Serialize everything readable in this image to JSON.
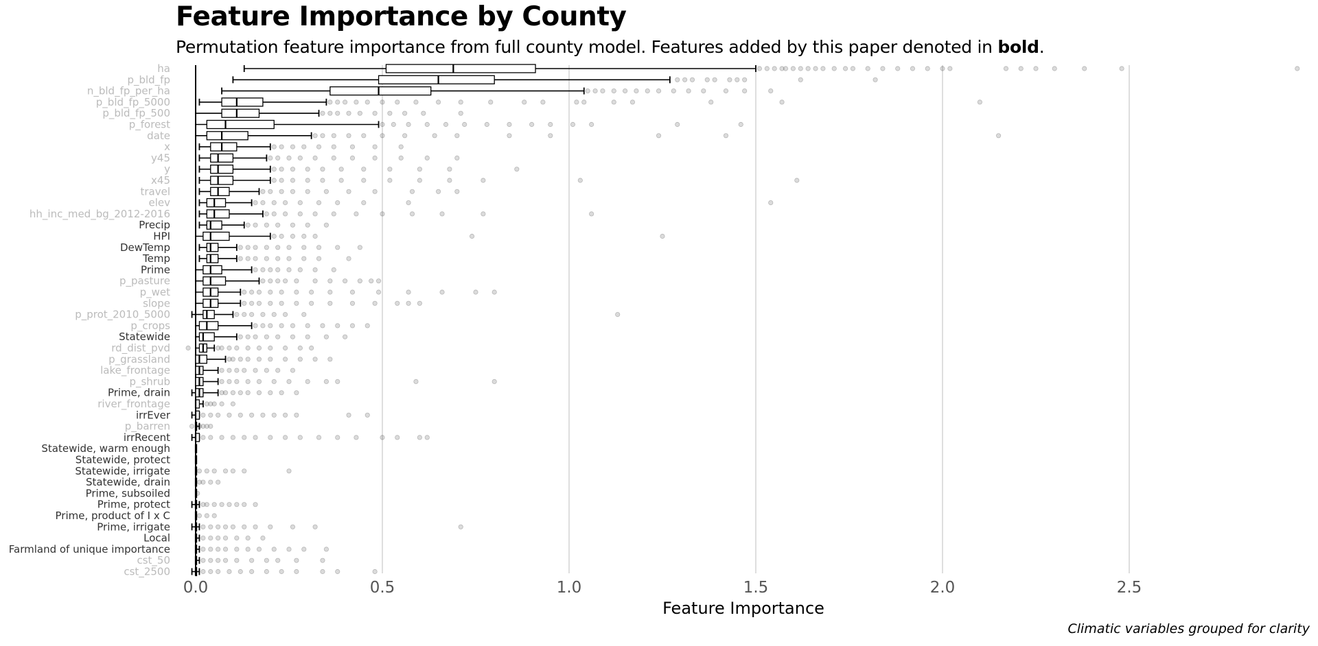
{
  "title": "Feature Importance by County",
  "subtitle": {
    "prefix": "Permutation feature importance from full county model. Features added by this paper denoted in ",
    "emphasis": "bold",
    "suffix": "."
  },
  "caption": "Climatic variables grouped for clarity",
  "colors": {
    "existing_feature_label": "#bbbbbb",
    "added_feature_label": "#333333",
    "gridline": "#c8c8c8",
    "box_fill": "#ffffff",
    "box_stroke": "#000000",
    "outlier": "#000000"
  },
  "chart_data": {
    "type": "boxplot",
    "orientation": "horizontal",
    "title": "Feature Importance by County",
    "xlabel": "Feature Importance",
    "ylabel": "",
    "xlim": [
      -0.05,
      3.0
    ],
    "xticks": [
      0.0,
      0.5,
      1.0,
      1.5,
      2.0,
      2.5
    ],
    "xtick_labels": [
      "0.0",
      "0.5",
      "1.0",
      "1.5",
      "2.0",
      "2.5"
    ],
    "grid": "vertical",
    "legend": "none",
    "series": [
      {
        "name": "ha",
        "bold": false,
        "wmin": 0.13,
        "q1": 0.51,
        "median": 0.69,
        "q3": 0.91,
        "wmax": 1.5,
        "outliers": [
          1.51,
          1.53,
          1.55,
          1.57,
          1.58,
          1.6,
          1.62,
          1.64,
          1.66,
          1.68,
          1.71,
          1.74,
          1.76,
          1.8,
          1.84,
          1.88,
          1.92,
          1.96,
          2.0,
          2.02,
          2.17,
          2.21,
          2.25,
          2.3,
          2.38,
          2.48,
          2.95
        ]
      },
      {
        "name": "p_bld_fp",
        "bold": false,
        "wmin": 0.1,
        "q1": 0.49,
        "median": 0.65,
        "q3": 0.8,
        "wmax": 1.27,
        "outliers": [
          1.29,
          1.31,
          1.33,
          1.37,
          1.39,
          1.43,
          1.45,
          1.47,
          1.62,
          1.82
        ]
      },
      {
        "name": "n_bld_fp_per_ha",
        "bold": false,
        "wmin": 0.07,
        "q1": 0.36,
        "median": 0.49,
        "q3": 0.63,
        "wmax": 1.04,
        "outliers": [
          1.05,
          1.07,
          1.09,
          1.12,
          1.15,
          1.18,
          1.21,
          1.24,
          1.28,
          1.32,
          1.36,
          1.42,
          1.47,
          1.54
        ]
      },
      {
        "name": "p_bld_fp_5000",
        "bold": false,
        "wmin": 0.01,
        "q1": 0.07,
        "median": 0.11,
        "q3": 0.18,
        "wmax": 0.35,
        "outliers": [
          0.36,
          0.38,
          0.4,
          0.43,
          0.46,
          0.5,
          0.54,
          0.59,
          0.65,
          0.71,
          0.79,
          0.88,
          0.93,
          1.02,
          1.04,
          1.12,
          1.17,
          1.38,
          1.57,
          2.1
        ]
      },
      {
        "name": "p_bld_fp_500",
        "bold": false,
        "wmin": 0.0,
        "q1": 0.07,
        "median": 0.11,
        "q3": 0.17,
        "wmax": 0.33,
        "outliers": [
          0.34,
          0.36,
          0.38,
          0.41,
          0.44,
          0.48,
          0.52,
          0.56,
          0.61,
          0.71
        ]
      },
      {
        "name": "p_forest",
        "bold": false,
        "wmin": 0.0,
        "q1": 0.03,
        "median": 0.08,
        "q3": 0.21,
        "wmax": 0.49,
        "outliers": [
          0.5,
          0.53,
          0.57,
          0.62,
          0.67,
          0.72,
          0.78,
          0.84,
          0.9,
          0.95,
          1.01,
          1.06,
          1.29,
          1.46
        ]
      },
      {
        "name": "date",
        "bold": false,
        "wmin": 0.0,
        "q1": 0.03,
        "median": 0.07,
        "q3": 0.14,
        "wmax": 0.31,
        "outliers": [
          0.32,
          0.34,
          0.37,
          0.41,
          0.45,
          0.5,
          0.56,
          0.64,
          0.7,
          0.84,
          0.95,
          1.24,
          1.42,
          2.15
        ]
      },
      {
        "name": "x",
        "bold": false,
        "wmin": 0.01,
        "q1": 0.04,
        "median": 0.07,
        "q3": 0.11,
        "wmax": 0.2,
        "outliers": [
          0.21,
          0.23,
          0.26,
          0.29,
          0.33,
          0.37,
          0.42,
          0.48,
          0.55
        ]
      },
      {
        "name": "y45",
        "bold": false,
        "wmin": 0.01,
        "q1": 0.04,
        "median": 0.06,
        "q3": 0.1,
        "wmax": 0.19,
        "outliers": [
          0.2,
          0.22,
          0.25,
          0.28,
          0.32,
          0.37,
          0.42,
          0.48,
          0.55,
          0.62,
          0.7
        ]
      },
      {
        "name": "y",
        "bold": false,
        "wmin": 0.01,
        "q1": 0.04,
        "median": 0.06,
        "q3": 0.1,
        "wmax": 0.2,
        "outliers": [
          0.21,
          0.23,
          0.26,
          0.3,
          0.34,
          0.39,
          0.45,
          0.52,
          0.6,
          0.68,
          0.86
        ]
      },
      {
        "name": "x45",
        "bold": false,
        "wmin": 0.01,
        "q1": 0.04,
        "median": 0.06,
        "q3": 0.1,
        "wmax": 0.2,
        "outliers": [
          0.21,
          0.23,
          0.26,
          0.3,
          0.34,
          0.39,
          0.45,
          0.52,
          0.6,
          0.68,
          0.77,
          1.03,
          1.61
        ]
      },
      {
        "name": "travel",
        "bold": false,
        "wmin": 0.01,
        "q1": 0.04,
        "median": 0.06,
        "q3": 0.09,
        "wmax": 0.17,
        "outliers": [
          0.18,
          0.2,
          0.23,
          0.26,
          0.3,
          0.35,
          0.41,
          0.48,
          0.58,
          0.65,
          0.7
        ]
      },
      {
        "name": "elev",
        "bold": false,
        "wmin": 0.01,
        "q1": 0.03,
        "median": 0.05,
        "q3": 0.08,
        "wmax": 0.15,
        "outliers": [
          0.16,
          0.18,
          0.21,
          0.24,
          0.28,
          0.33,
          0.38,
          0.45,
          0.57,
          1.54
        ]
      },
      {
        "name": "hh_inc_med_bg_2012-2016",
        "bold": false,
        "wmin": 0.01,
        "q1": 0.03,
        "median": 0.05,
        "q3": 0.09,
        "wmax": 0.18,
        "outliers": [
          0.19,
          0.21,
          0.24,
          0.28,
          0.32,
          0.37,
          0.43,
          0.5,
          0.58,
          0.66,
          0.77,
          1.06
        ]
      },
      {
        "name": "Precip",
        "bold": true,
        "wmin": 0.01,
        "q1": 0.03,
        "median": 0.04,
        "q3": 0.07,
        "wmax": 0.13,
        "outliers": [
          0.14,
          0.16,
          0.19,
          0.22,
          0.26,
          0.3,
          0.35
        ]
      },
      {
        "name": "HPI",
        "bold": true,
        "wmin": 0.0,
        "q1": 0.02,
        "median": 0.04,
        "q3": 0.09,
        "wmax": 0.2,
        "outliers": [
          0.21,
          0.23,
          0.26,
          0.29,
          0.32,
          0.74,
          1.25
        ]
      },
      {
        "name": "DewTemp",
        "bold": true,
        "wmin": 0.01,
        "q1": 0.03,
        "median": 0.04,
        "q3": 0.06,
        "wmax": 0.11,
        "outliers": [
          0.12,
          0.14,
          0.16,
          0.19,
          0.22,
          0.25,
          0.29,
          0.33,
          0.38,
          0.44
        ]
      },
      {
        "name": "Temp",
        "bold": true,
        "wmin": 0.01,
        "q1": 0.03,
        "median": 0.04,
        "q3": 0.06,
        "wmax": 0.11,
        "outliers": [
          0.12,
          0.14,
          0.16,
          0.19,
          0.22,
          0.25,
          0.29,
          0.33,
          0.41
        ]
      },
      {
        "name": "Prime",
        "bold": true,
        "wmin": 0.0,
        "q1": 0.02,
        "median": 0.04,
        "q3": 0.07,
        "wmax": 0.15,
        "outliers": [
          0.16,
          0.18,
          0.2,
          0.22,
          0.25,
          0.28,
          0.32,
          0.37
        ]
      },
      {
        "name": "p_pasture",
        "bold": false,
        "wmin": 0.0,
        "q1": 0.02,
        "median": 0.04,
        "q3": 0.08,
        "wmax": 0.17,
        "outliers": [
          0.18,
          0.2,
          0.22,
          0.24,
          0.27,
          0.32,
          0.36,
          0.4,
          0.44,
          0.47,
          0.49
        ]
      },
      {
        "name": "p_wet",
        "bold": false,
        "wmin": 0.0,
        "q1": 0.02,
        "median": 0.04,
        "q3": 0.06,
        "wmax": 0.12,
        "outliers": [
          0.13,
          0.15,
          0.17,
          0.2,
          0.23,
          0.27,
          0.31,
          0.36,
          0.42,
          0.49,
          0.57,
          0.66,
          0.75,
          0.8
        ]
      },
      {
        "name": "slope",
        "bold": false,
        "wmin": 0.0,
        "q1": 0.02,
        "median": 0.04,
        "q3": 0.06,
        "wmax": 0.12,
        "outliers": [
          0.13,
          0.15,
          0.17,
          0.2,
          0.23,
          0.27,
          0.31,
          0.36,
          0.42,
          0.48,
          0.54,
          0.57,
          0.6
        ]
      },
      {
        "name": "p_prot_2010_5000",
        "bold": false,
        "wmin": -0.01,
        "q1": 0.02,
        "median": 0.03,
        "q3": 0.05,
        "wmax": 0.1,
        "outliers": [
          0.11,
          0.13,
          0.15,
          0.18,
          0.21,
          0.24,
          0.29,
          1.13
        ]
      },
      {
        "name": "p_crops",
        "bold": false,
        "wmin": 0.0,
        "q1": 0.01,
        "median": 0.03,
        "q3": 0.06,
        "wmax": 0.15,
        "outliers": [
          0.16,
          0.18,
          0.2,
          0.23,
          0.26,
          0.3,
          0.34,
          0.38,
          0.42,
          0.46
        ]
      },
      {
        "name": "Statewide",
        "bold": true,
        "wmin": 0.0,
        "q1": 0.01,
        "median": 0.02,
        "q3": 0.05,
        "wmax": 0.11,
        "outliers": [
          0.12,
          0.14,
          0.16,
          0.19,
          0.22,
          0.26,
          0.3,
          0.35,
          0.4
        ]
      },
      {
        "name": "rd_dist_pvd",
        "bold": false,
        "wmin": 0.0,
        "q1": 0.01,
        "median": 0.02,
        "q3": 0.03,
        "wmax": 0.05,
        "outliers": [
          -0.02,
          0.06,
          0.07,
          0.09,
          0.11,
          0.14,
          0.17,
          0.2,
          0.24,
          0.28,
          0.31
        ]
      },
      {
        "name": "p_grassland",
        "bold": false,
        "wmin": 0.0,
        "q1": 0.0,
        "median": 0.01,
        "q3": 0.03,
        "wmax": 0.08,
        "outliers": [
          0.09,
          0.1,
          0.12,
          0.14,
          0.17,
          0.2,
          0.24,
          0.28,
          0.32,
          0.36
        ]
      },
      {
        "name": "lake_frontage",
        "bold": false,
        "wmin": 0.0,
        "q1": 0.0,
        "median": 0.01,
        "q3": 0.02,
        "wmax": 0.06,
        "outliers": [
          0.07,
          0.09,
          0.11,
          0.13,
          0.16,
          0.19,
          0.22,
          0.26
        ]
      },
      {
        "name": "p_shrub",
        "bold": false,
        "wmin": 0.0,
        "q1": 0.0,
        "median": 0.01,
        "q3": 0.02,
        "wmax": 0.06,
        "outliers": [
          0.07,
          0.09,
          0.11,
          0.14,
          0.17,
          0.21,
          0.25,
          0.3,
          0.35,
          0.38,
          0.59,
          0.8
        ]
      },
      {
        "name": "Prime, drain",
        "bold": true,
        "wmin": -0.01,
        "q1": 0.0,
        "median": 0.01,
        "q3": 0.02,
        "wmax": 0.06,
        "outliers": [
          0.07,
          0.08,
          0.1,
          0.12,
          0.14,
          0.17,
          0.2,
          0.23,
          0.27
        ]
      },
      {
        "name": "river_frontage",
        "bold": false,
        "wmin": 0.0,
        "q1": 0.0,
        "median": 0.0,
        "q3": 0.01,
        "wmax": 0.02,
        "outliers": [
          0.03,
          0.04,
          0.05,
          0.07,
          0.1
        ]
      },
      {
        "name": "irrEver",
        "bold": true,
        "wmin": -0.01,
        "q1": 0.0,
        "median": 0.0,
        "q3": 0.01,
        "wmax": 0.01,
        "outliers": [
          0.02,
          0.04,
          0.06,
          0.09,
          0.12,
          0.15,
          0.18,
          0.21,
          0.24,
          0.27,
          0.41,
          0.46
        ]
      },
      {
        "name": "p_barren",
        "bold": false,
        "wmin": 0.0,
        "q1": 0.0,
        "median": 0.0,
        "q3": 0.0,
        "wmax": 0.01,
        "outliers": [
          -0.01,
          0.01,
          0.02,
          0.03,
          0.04
        ]
      },
      {
        "name": "irrRecent",
        "bold": true,
        "wmin": -0.01,
        "q1": 0.0,
        "median": 0.0,
        "q3": 0.01,
        "wmax": 0.01,
        "outliers": [
          0.02,
          0.04,
          0.07,
          0.1,
          0.13,
          0.16,
          0.2,
          0.24,
          0.28,
          0.33,
          0.38,
          0.43,
          0.5,
          0.54,
          0.6,
          0.62
        ]
      },
      {
        "name": "Statewide, warm enough",
        "bold": true,
        "wmin": 0.0,
        "q1": 0.0,
        "median": 0.0,
        "q3": 0.0,
        "wmax": 0.0,
        "outliers": []
      },
      {
        "name": "Statewide, protect",
        "bold": true,
        "wmin": 0.0,
        "q1": 0.0,
        "median": 0.0,
        "q3": 0.0,
        "wmax": 0.0,
        "outliers": []
      },
      {
        "name": "Statewide, irrigate",
        "bold": true,
        "wmin": 0.0,
        "q1": 0.0,
        "median": 0.0,
        "q3": 0.0,
        "wmax": 0.0,
        "outliers": [
          0.01,
          0.03,
          0.05,
          0.08,
          0.1,
          0.13,
          0.25
        ]
      },
      {
        "name": "Statewide, drain",
        "bold": true,
        "wmin": 0.0,
        "q1": 0.0,
        "median": 0.0,
        "q3": 0.0,
        "wmax": 0.0,
        "outliers": [
          0.01,
          0.02,
          0.04,
          0.06
        ]
      },
      {
        "name": "Prime, subsoiled",
        "bold": true,
        "wmin": 0.0,
        "q1": 0.0,
        "median": 0.0,
        "q3": 0.0,
        "wmax": 0.0,
        "outliers": [
          0.005
        ]
      },
      {
        "name": "Prime, protect",
        "bold": true,
        "wmin": -0.01,
        "q1": 0.0,
        "median": 0.0,
        "q3": 0.0,
        "wmax": 0.01,
        "outliers": [
          0.02,
          0.03,
          0.05,
          0.07,
          0.09,
          0.11,
          0.13,
          0.16
        ]
      },
      {
        "name": "Prime, product of I x C",
        "bold": true,
        "wmin": 0.0,
        "q1": 0.0,
        "median": 0.0,
        "q3": 0.0,
        "wmax": 0.0,
        "outliers": [
          0.01,
          0.03,
          0.05
        ]
      },
      {
        "name": "Prime, irrigate",
        "bold": true,
        "wmin": -0.01,
        "q1": 0.0,
        "median": 0.0,
        "q3": 0.0,
        "wmax": 0.01,
        "outliers": [
          0.02,
          0.04,
          0.06,
          0.08,
          0.1,
          0.13,
          0.16,
          0.2,
          0.26,
          0.32,
          0.71
        ]
      },
      {
        "name": "Local",
        "bold": true,
        "wmin": 0.0,
        "q1": 0.0,
        "median": 0.0,
        "q3": 0.0,
        "wmax": 0.01,
        "outliers": [
          0.02,
          0.04,
          0.06,
          0.08,
          0.11,
          0.14,
          0.18
        ]
      },
      {
        "name": "Farmland of unique importance",
        "bold": true,
        "wmin": 0.0,
        "q1": 0.0,
        "median": 0.0,
        "q3": 0.0,
        "wmax": 0.01,
        "outliers": [
          0.02,
          0.04,
          0.06,
          0.08,
          0.11,
          0.14,
          0.17,
          0.21,
          0.25,
          0.29,
          0.35
        ]
      },
      {
        "name": "cst_50",
        "bold": false,
        "wmin": 0.0,
        "q1": 0.0,
        "median": 0.0,
        "q3": 0.0,
        "wmax": 0.01,
        "outliers": [
          0.02,
          0.04,
          0.06,
          0.08,
          0.11,
          0.15,
          0.19,
          0.22,
          0.27,
          0.34
        ]
      },
      {
        "name": "cst_2500",
        "bold": false,
        "wmin": -0.01,
        "q1": 0.0,
        "median": 0.0,
        "q3": 0.0,
        "wmax": 0.01,
        "outliers": [
          0.02,
          0.04,
          0.06,
          0.09,
          0.12,
          0.15,
          0.19,
          0.23,
          0.27,
          0.34,
          0.38,
          0.48
        ]
      }
    ]
  }
}
